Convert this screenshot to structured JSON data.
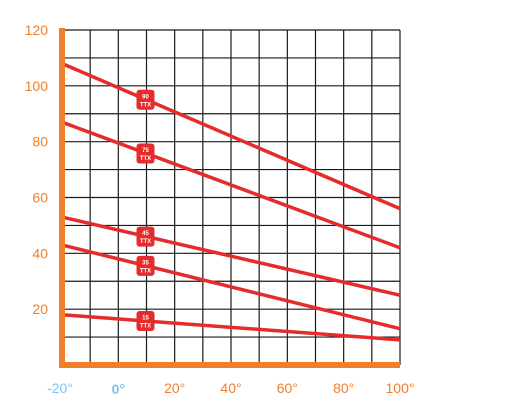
{
  "chart_data": {
    "type": "line",
    "xlabel": "",
    "ylabel": "",
    "xlim": [
      -20,
      100
    ],
    "ylim": [
      0,
      120
    ],
    "grid": true,
    "y_ticks": [
      "120",
      "100",
      "80",
      "60",
      "40",
      "20"
    ],
    "x_ticks": [
      {
        "value": -20,
        "label": "-20°",
        "color": "#7cc4ee",
        "emphasis": false
      },
      {
        "value": 0,
        "label": "0°",
        "color": "#7cc4ee",
        "emphasis": true
      },
      {
        "value": 20,
        "label": "20°",
        "color": "#f07f2b",
        "emphasis": false
      },
      {
        "value": 40,
        "label": "40°",
        "color": "#f07f2b",
        "emphasis": false
      },
      {
        "value": 60,
        "label": "60°",
        "color": "#f07f2b",
        "emphasis": false
      },
      {
        "value": 80,
        "label": "80°",
        "color": "#f07f2b",
        "emphasis": false
      },
      {
        "value": 100,
        "label": "100°",
        "color": "#f07f2b",
        "emphasis": false
      }
    ],
    "series": [
      {
        "tag_top": "90",
        "tag_bottom": "TTX",
        "x": [
          -20,
          100
        ],
        "y": [
          108,
          56
        ],
        "tag_x": 10
      },
      {
        "tag_top": "75",
        "tag_bottom": "TTX",
        "x": [
          -20,
          100
        ],
        "y": [
          87,
          42
        ],
        "tag_x": 10
      },
      {
        "tag_top": "45",
        "tag_bottom": "TTX",
        "x": [
          -20,
          100
        ],
        "y": [
          53,
          25
        ],
        "tag_x": 10
      },
      {
        "tag_top": "35",
        "tag_bottom": "TTX",
        "x": [
          -20,
          100
        ],
        "y": [
          43,
          13
        ],
        "tag_x": 10
      },
      {
        "tag_top": "15",
        "tag_bottom": "TTX",
        "x": [
          -20,
          100
        ],
        "y": [
          18,
          9
        ],
        "tag_x": 10
      }
    ],
    "colors": {
      "axis": "#f07f2b",
      "grid": "#1a1a1a",
      "line": "#e52b2b",
      "tag": "#e52b2b"
    }
  }
}
